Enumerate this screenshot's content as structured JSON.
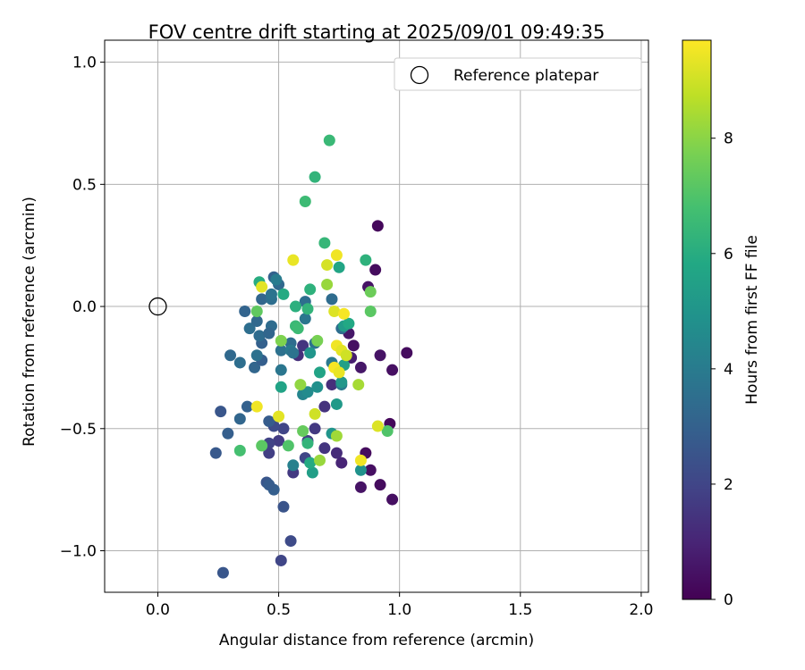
{
  "chart_data": {
    "type": "scatter",
    "title": "FOV centre drift starting at 2025/09/01 09:49:35",
    "xlabel": "Angular distance from reference (arcmin)",
    "ylabel": "Rotation from reference (arcmin)",
    "xlim": [
      -0.22,
      2.03
    ],
    "ylim": [
      -1.17,
      1.09
    ],
    "xticks": [
      0.0,
      0.5,
      1.0,
      1.5,
      2.0
    ],
    "yticks": [
      -1.0,
      -0.5,
      0.0,
      0.5,
      1.0
    ],
    "xtick_labels": [
      "0.0",
      "0.5",
      "1.0",
      "1.5",
      "2.0"
    ],
    "ytick_labels": [
      "−1.0",
      "−0.5",
      "0.0",
      "0.5",
      "1.0"
    ],
    "grid": true,
    "legend": {
      "placement": "top-right",
      "label": "Reference platepar"
    },
    "reference_point": {
      "x": 0.0,
      "y": 0.0
    },
    "colorbar": {
      "label": "Hours from first FF file",
      "colormap": "viridis",
      "range": [
        0,
        9.7
      ],
      "ticks": [
        0,
        2,
        4,
        6,
        8
      ],
      "tick_labels": [
        "0",
        "2",
        "4",
        "6",
        "8"
      ]
    },
    "points": [
      {
        "x": 0.91,
        "y": 0.33,
        "c": 0.2
      },
      {
        "x": 0.9,
        "y": 0.15,
        "c": 0.3
      },
      {
        "x": 0.87,
        "y": 0.08,
        "c": 0.5
      },
      {
        "x": 0.79,
        "y": -0.11,
        "c": 0.6
      },
      {
        "x": 0.81,
        "y": -0.16,
        "c": 0.4
      },
      {
        "x": 0.8,
        "y": -0.21,
        "c": 0.8
      },
      {
        "x": 0.84,
        "y": -0.25,
        "c": 0.6
      },
      {
        "x": 0.92,
        "y": -0.2,
        "c": 0.5
      },
      {
        "x": 1.03,
        "y": -0.19,
        "c": 0.3
      },
      {
        "x": 0.97,
        "y": -0.26,
        "c": 0.4
      },
      {
        "x": 0.96,
        "y": -0.48,
        "c": 0.2
      },
      {
        "x": 0.86,
        "y": -0.6,
        "c": 0.3
      },
      {
        "x": 0.88,
        "y": -0.67,
        "c": 0.4
      },
      {
        "x": 0.84,
        "y": -0.74,
        "c": 0.5
      },
      {
        "x": 0.92,
        "y": -0.73,
        "c": 0.3
      },
      {
        "x": 0.97,
        "y": -0.79,
        "c": 0.4
      },
      {
        "x": 0.76,
        "y": -0.64,
        "c": 1.0
      },
      {
        "x": 0.74,
        "y": -0.6,
        "c": 1.2
      },
      {
        "x": 0.69,
        "y": -0.58,
        "c": 1.5
      },
      {
        "x": 0.72,
        "y": -0.32,
        "c": 1.3
      },
      {
        "x": 0.69,
        "y": -0.41,
        "c": 1.4
      },
      {
        "x": 0.65,
        "y": -0.5,
        "c": 1.6
      },
      {
        "x": 0.62,
        "y": -0.55,
        "c": 1.8
      },
      {
        "x": 0.6,
        "y": -0.16,
        "c": 1.5
      },
      {
        "x": 0.58,
        "y": -0.2,
        "c": 1.3
      },
      {
        "x": 0.52,
        "y": -0.5,
        "c": 2.0
      },
      {
        "x": 0.5,
        "y": -0.55,
        "c": 1.7
      },
      {
        "x": 0.48,
        "y": -0.49,
        "c": 2.2
      },
      {
        "x": 0.46,
        "y": -0.56,
        "c": 1.9
      },
      {
        "x": 0.46,
        "y": -0.6,
        "c": 1.8
      },
      {
        "x": 0.56,
        "y": -0.68,
        "c": 1.6
      },
      {
        "x": 0.61,
        "y": -0.62,
        "c": 2.0
      },
      {
        "x": 0.52,
        "y": -0.82,
        "c": 2.5
      },
      {
        "x": 0.55,
        "y": -0.96,
        "c": 2.2
      },
      {
        "x": 0.51,
        "y": -1.04,
        "c": 2.0
      },
      {
        "x": 0.27,
        "y": -1.09,
        "c": 2.6
      },
      {
        "x": 0.45,
        "y": -0.72,
        "c": 2.6
      },
      {
        "x": 0.48,
        "y": -0.75,
        "c": 2.9
      },
      {
        "x": 0.46,
        "y": -0.73,
        "c": 2.8
      },
      {
        "x": 0.24,
        "y": -0.6,
        "c": 2.7
      },
      {
        "x": 0.29,
        "y": -0.52,
        "c": 2.9
      },
      {
        "x": 0.26,
        "y": -0.43,
        "c": 2.6
      },
      {
        "x": 0.34,
        "y": -0.46,
        "c": 3.2
      },
      {
        "x": 0.37,
        "y": -0.41,
        "c": 3.0
      },
      {
        "x": 0.46,
        "y": -0.47,
        "c": 2.8
      },
      {
        "x": 0.3,
        "y": -0.2,
        "c": 3.3
      },
      {
        "x": 0.34,
        "y": -0.23,
        "c": 3.5
      },
      {
        "x": 0.4,
        "y": -0.25,
        "c": 3.2
      },
      {
        "x": 0.43,
        "y": -0.22,
        "c": 2.9
      },
      {
        "x": 0.41,
        "y": -0.2,
        "c": 3.6
      },
      {
        "x": 0.43,
        "y": -0.15,
        "c": 3.0
      },
      {
        "x": 0.42,
        "y": -0.12,
        "c": 3.4
      },
      {
        "x": 0.38,
        "y": -0.09,
        "c": 3.5
      },
      {
        "x": 0.41,
        "y": -0.06,
        "c": 3.3
      },
      {
        "x": 0.36,
        "y": -0.02,
        "c": 3.1
      },
      {
        "x": 0.43,
        "y": 0.03,
        "c": 3.2
      },
      {
        "x": 0.47,
        "y": 0.03,
        "c": 3.5
      },
      {
        "x": 0.47,
        "y": 0.05,
        "c": 3.7
      },
      {
        "x": 0.47,
        "y": -0.08,
        "c": 3.4
      },
      {
        "x": 0.46,
        "y": -0.11,
        "c": 3.2
      },
      {
        "x": 0.48,
        "y": 0.12,
        "c": 3.0
      },
      {
        "x": 0.5,
        "y": 0.09,
        "c": 3.3
      },
      {
        "x": 0.49,
        "y": 0.11,
        "c": 4.0
      },
      {
        "x": 0.51,
        "y": -0.18,
        "c": 3.6
      },
      {
        "x": 0.51,
        "y": -0.26,
        "c": 3.8
      },
      {
        "x": 0.55,
        "y": -0.15,
        "c": 3.4
      },
      {
        "x": 0.55,
        "y": -0.18,
        "c": 3.9
      },
      {
        "x": 0.56,
        "y": -0.19,
        "c": 3.7
      },
      {
        "x": 0.61,
        "y": 0.02,
        "c": 3.5
      },
      {
        "x": 0.61,
        "y": -0.05,
        "c": 3.8
      },
      {
        "x": 0.65,
        "y": -0.15,
        "c": 3.6
      },
      {
        "x": 0.72,
        "y": 0.03,
        "c": 3.4
      },
      {
        "x": 0.72,
        "y": -0.23,
        "c": 3.9
      },
      {
        "x": 0.76,
        "y": -0.09,
        "c": 3.5
      },
      {
        "x": 0.76,
        "y": -0.32,
        "c": 4.0
      },
      {
        "x": 0.56,
        "y": -0.65,
        "c": 4.2
      },
      {
        "x": 0.6,
        "y": -0.36,
        "c": 4.4
      },
      {
        "x": 0.62,
        "y": -0.35,
        "c": 4.6
      },
      {
        "x": 0.66,
        "y": -0.33,
        "c": 4.8
      },
      {
        "x": 0.63,
        "y": -0.19,
        "c": 5.0
      },
      {
        "x": 0.76,
        "y": -0.31,
        "c": 5.1
      },
      {
        "x": 0.74,
        "y": -0.4,
        "c": 5.2
      },
      {
        "x": 0.77,
        "y": -0.24,
        "c": 5.5
      },
      {
        "x": 0.77,
        "y": -0.08,
        "c": 5.3
      },
      {
        "x": 0.79,
        "y": -0.07,
        "c": 5.8
      },
      {
        "x": 0.75,
        "y": 0.16,
        "c": 5.7
      },
      {
        "x": 0.72,
        "y": -0.52,
        "c": 5.0
      },
      {
        "x": 0.64,
        "y": -0.68,
        "c": 5.4
      },
      {
        "x": 0.63,
        "y": -0.64,
        "c": 5.9
      },
      {
        "x": 0.84,
        "y": -0.67,
        "c": 4.9
      },
      {
        "x": 0.67,
        "y": -0.27,
        "c": 5.6
      },
      {
        "x": 0.51,
        "y": -0.33,
        "c": 5.6
      },
      {
        "x": 0.52,
        "y": 0.05,
        "c": 5.9
      },
      {
        "x": 0.42,
        "y": 0.1,
        "c": 6.0
      },
      {
        "x": 0.63,
        "y": 0.07,
        "c": 6.2
      },
      {
        "x": 0.57,
        "y": 0.0,
        "c": 6.1
      },
      {
        "x": 0.62,
        "y": -0.01,
        "c": 6.3
      },
      {
        "x": 0.57,
        "y": -0.08,
        "c": 6.5
      },
      {
        "x": 0.58,
        "y": -0.09,
        "c": 6.6
      },
      {
        "x": 0.69,
        "y": 0.26,
        "c": 6.4
      },
      {
        "x": 0.86,
        "y": 0.19,
        "c": 6.2
      },
      {
        "x": 0.61,
        "y": 0.43,
        "c": 6.6
      },
      {
        "x": 0.65,
        "y": 0.53,
        "c": 6.3
      },
      {
        "x": 0.71,
        "y": 0.68,
        "c": 6.5
      },
      {
        "x": 0.62,
        "y": -0.56,
        "c": 6.3
      },
      {
        "x": 0.34,
        "y": -0.59,
        "c": 6.8
      },
      {
        "x": 0.43,
        "y": -0.57,
        "c": 7.2
      },
      {
        "x": 0.54,
        "y": -0.57,
        "c": 7.0
      },
      {
        "x": 0.6,
        "y": -0.51,
        "c": 7.4
      },
      {
        "x": 0.95,
        "y": -0.51,
        "c": 7.0
      },
      {
        "x": 0.88,
        "y": -0.02,
        "c": 7.2
      },
      {
        "x": 0.88,
        "y": 0.06,
        "c": 7.5
      },
      {
        "x": 0.41,
        "y": -0.02,
        "c": 7.3
      },
      {
        "x": 0.51,
        "y": -0.14,
        "c": 7.8
      },
      {
        "x": 0.66,
        "y": -0.14,
        "c": 7.7
      },
      {
        "x": 0.59,
        "y": -0.32,
        "c": 8.1
      },
      {
        "x": 0.74,
        "y": -0.53,
        "c": 8.3
      },
      {
        "x": 0.67,
        "y": -0.63,
        "c": 8.2
      },
      {
        "x": 0.83,
        "y": -0.32,
        "c": 8.4
      },
      {
        "x": 0.7,
        "y": 0.09,
        "c": 8.2
      },
      {
        "x": 0.41,
        "y": -0.41,
        "c": 9.5
      },
      {
        "x": 0.5,
        "y": -0.45,
        "c": 9.3
      },
      {
        "x": 0.65,
        "y": -0.44,
        "c": 9.0
      },
      {
        "x": 0.56,
        "y": 0.19,
        "c": 9.4
      },
      {
        "x": 0.7,
        "y": 0.17,
        "c": 9.1
      },
      {
        "x": 0.74,
        "y": 0.21,
        "c": 9.5
      },
      {
        "x": 0.73,
        "y": -0.02,
        "c": 9.2
      },
      {
        "x": 0.77,
        "y": -0.03,
        "c": 9.6
      },
      {
        "x": 0.74,
        "y": -0.16,
        "c": 9.5
      },
      {
        "x": 0.76,
        "y": -0.18,
        "c": 9.3
      },
      {
        "x": 0.78,
        "y": -0.2,
        "c": 9.0
      },
      {
        "x": 0.73,
        "y": -0.25,
        "c": 9.6
      },
      {
        "x": 0.75,
        "y": -0.27,
        "c": 9.4
      },
      {
        "x": 0.91,
        "y": -0.49,
        "c": 9.2
      },
      {
        "x": 0.84,
        "y": -0.63,
        "c": 9.5
      },
      {
        "x": 0.43,
        "y": 0.08,
        "c": 9.3
      }
    ]
  }
}
